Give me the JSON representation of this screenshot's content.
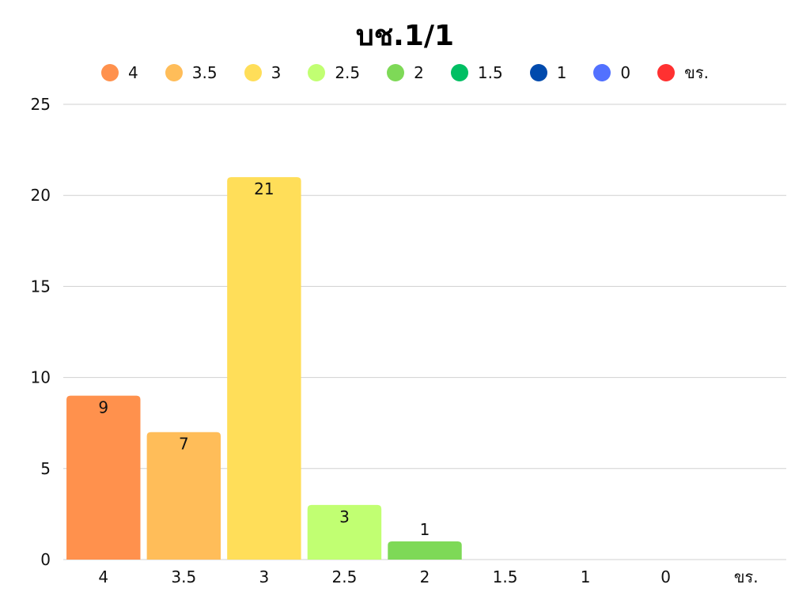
{
  "chart_data": {
    "type": "bar",
    "title": "บช.1/1",
    "xlabel": "",
    "ylabel": "",
    "categories": [
      "4",
      "3.5",
      "3",
      "2.5",
      "2",
      "1.5",
      "1",
      "0",
      "ขร."
    ],
    "values": [
      9,
      7,
      21,
      3,
      1,
      0,
      0,
      0,
      0
    ],
    "colors": [
      "#ff914d",
      "#ffbd59",
      "#ffde59",
      "#c1ff72",
      "#7ed957",
      "#00bf63",
      "#004aad",
      "#5271ff",
      "#ff3131"
    ],
    "ylim": [
      0,
      25
    ],
    "yticks": [
      0,
      5,
      10,
      15,
      20,
      25
    ],
    "grid": true,
    "legend_position": "top",
    "legend": [
      "4",
      "3.5",
      "3",
      "2.5",
      "2",
      "1.5",
      "1",
      "0",
      "ขร."
    ],
    "data_labels": true
  }
}
